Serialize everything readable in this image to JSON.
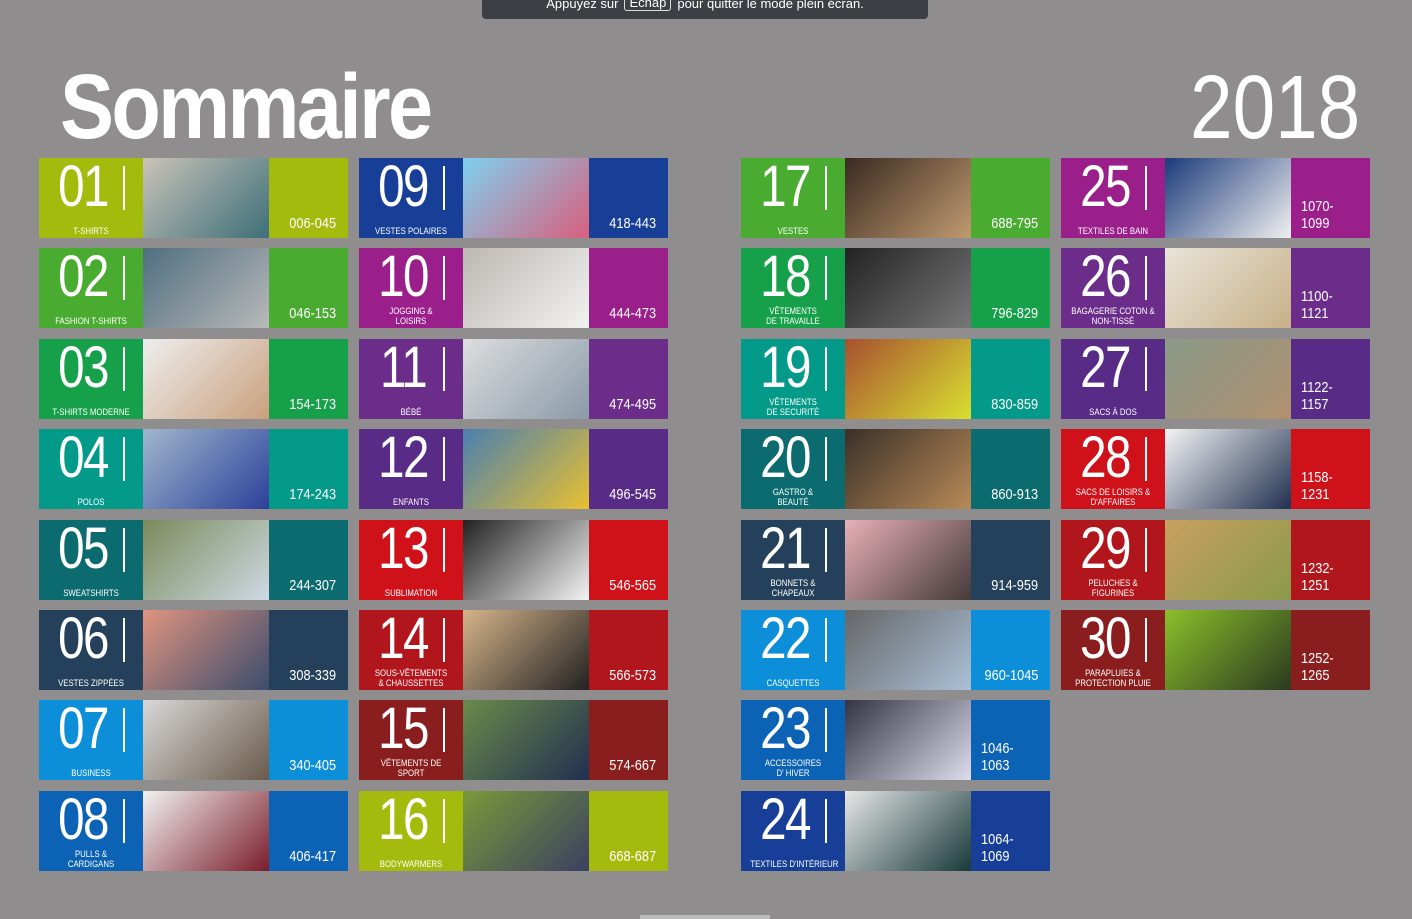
{
  "banner": {
    "before": "Appuyez sur",
    "key": "Echap",
    "after": "pour quitter le mode plein écran."
  },
  "title": "Sommaire",
  "year": "2018",
  "tiles": [
    {
      "num": "01",
      "label": "T-Shirts",
      "pages": "006-045",
      "color": "#a3bb0c"
    },
    {
      "num": "02",
      "label": "Fashion T-Shirts",
      "pages": "046-153",
      "color": "#4aab31"
    },
    {
      "num": "03",
      "label": "T-Shirts moderne",
      "pages": "154-173",
      "color": "#16a04a"
    },
    {
      "num": "04",
      "label": "Polos",
      "pages": "174-243",
      "color": "#049a8a"
    },
    {
      "num": "05",
      "label": "Sweatshirts",
      "pages": "244-307",
      "color": "#0b6b6e"
    },
    {
      "num": "06",
      "label": "Vestes zippées",
      "pages": "308-339",
      "color": "#24405a"
    },
    {
      "num": "07",
      "label": "Business",
      "pages": "340-405",
      "color": "#0c8fd8"
    },
    {
      "num": "08",
      "label": "Pulls &\nCardigans",
      "pages": "406-417",
      "color": "#0c62b4"
    },
    {
      "num": "09",
      "label": "Vestes polaires",
      "pages": "418-443",
      "color": "#173f98"
    },
    {
      "num": "10",
      "label": "Jogging &\nLoisirs",
      "pages": "444-473",
      "color": "#9b1f8a"
    },
    {
      "num": "11",
      "label": "Bébé",
      "pages": "474-495",
      "color": "#6c2d8a"
    },
    {
      "num": "12",
      "label": "Enfants",
      "pages": "496-545",
      "color": "#582b86"
    },
    {
      "num": "13",
      "label": "Sublimation",
      "pages": "546-565",
      "color": "#cf1119"
    },
    {
      "num": "14",
      "label": "Sous-vêtements\n& chaussettes",
      "pages": "566-573",
      "color": "#b2161d"
    },
    {
      "num": "15",
      "label": "Vêtements de\nsport",
      "pages": "574-667",
      "color": "#8a1d1d"
    },
    {
      "num": "16",
      "label": "Bodywarmers",
      "pages": "668-687",
      "color": "#a3bb0c"
    },
    {
      "num": "17",
      "label": "Vestes",
      "pages": "688-795",
      "color": "#4aab31"
    },
    {
      "num": "18",
      "label": "Vêtements\nde travaille",
      "pages": "796-829",
      "color": "#16a04a"
    },
    {
      "num": "19",
      "label": "Vêtements\nde securité",
      "pages": "830-859",
      "color": "#049a8a"
    },
    {
      "num": "20",
      "label": "Gastro &\nbeauté",
      "pages": "860-913",
      "color": "#0b6b6e"
    },
    {
      "num": "21",
      "label": "Bonnets &\nchapeaux",
      "pages": "914-959",
      "color": "#24405a"
    },
    {
      "num": "22",
      "label": "Casquettes",
      "pages": "960-1045",
      "color": "#0c8fd8"
    },
    {
      "num": "23",
      "label": "Accessoires\nd' hiver",
      "pages": "1046-1063",
      "color": "#0c62b4"
    },
    {
      "num": "24",
      "label": "Textiles d'intérieur",
      "pages": "1064-1069",
      "color": "#173f98"
    },
    {
      "num": "25",
      "label": "Textiles de bain",
      "pages": "1070-1099",
      "color": "#9b1f8a"
    },
    {
      "num": "26",
      "label": "Bagagerie coton &\nnon-tissé",
      "pages": "1100-1121",
      "color": "#6c2d8a"
    },
    {
      "num": "27",
      "label": "Sacs à dos",
      "pages": "1122-1157",
      "color": "#582b86"
    },
    {
      "num": "28",
      "label": "Sacs de loisirs &\nd'affaires",
      "pages": "1158-1231",
      "color": "#cf1119"
    },
    {
      "num": "29",
      "label": "Peluches &\nfigurines",
      "pages": "1232-1251",
      "color": "#b2161d"
    },
    {
      "num": "30",
      "label": "Parapluies &\nprotection pluie",
      "pages": "1252-1265",
      "color": "#8a1d1d"
    }
  ]
}
